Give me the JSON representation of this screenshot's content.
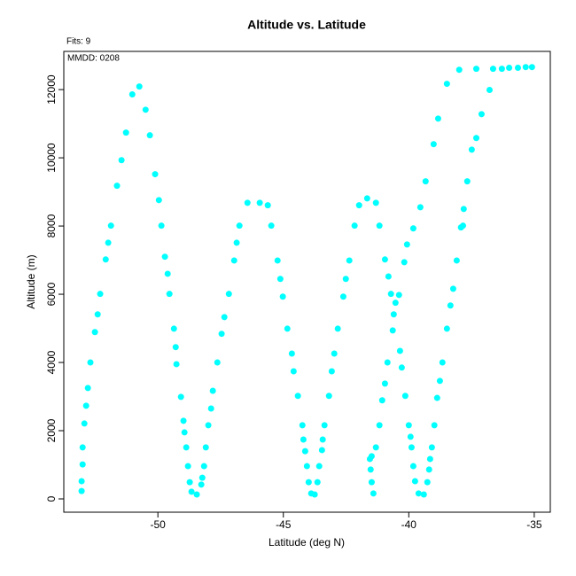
{
  "chart_data": {
    "type": "scatter",
    "title": "Altitude vs. Latitude",
    "subtitle": "Fits: 9",
    "annotation": "MMDD: 0208",
    "xlabel": "Latitude (deg N)",
    "ylabel": "Altitude (m)",
    "color": "#00ffff",
    "xlim": [
      -53.75,
      -34.36
    ],
    "ylim": [
      -390,
      13120
    ],
    "xticks": [
      -50,
      -45,
      -40,
      -35
    ],
    "yticks": [
      0,
      2000,
      4000,
      6000,
      8000,
      10000,
      12000
    ],
    "x": [
      -53.04,
      -53.04,
      -53.0,
      -53.0,
      -52.93,
      -52.86,
      -52.79,
      -52.69,
      -52.51,
      -52.4,
      -52.3,
      -52.08,
      -51.98,
      -51.87,
      -51.63,
      -51.45,
      -51.27,
      -51.02,
      -50.74,
      -50.49,
      -50.32,
      -50.11,
      -49.96,
      -49.86,
      -49.72,
      -49.61,
      -49.54,
      -49.36,
      -49.29,
      -49.26,
      -49.08,
      -48.98,
      -48.94,
      -48.87,
      -48.8,
      -48.73,
      -48.66,
      -48.45,
      -48.27,
      -48.23,
      -48.16,
      -48.09,
      -47.99,
      -47.88,
      -47.81,
      -47.63,
      -47.46,
      -47.35,
      -47.17,
      -46.96,
      -46.86,
      -46.75,
      -46.43,
      -45.94,
      -45.62,
      -45.48,
      -45.23,
      -45.12,
      -45.02,
      -44.84,
      -44.66,
      -44.59,
      -44.42,
      -44.24,
      -44.2,
      -44.13,
      -44.06,
      -43.99,
      -43.89,
      -43.75,
      -43.64,
      -43.57,
      -43.46,
      -43.43,
      -43.36,
      -43.18,
      -43.07,
      -42.97,
      -42.83,
      -42.61,
      -42.51,
      -42.37,
      -42.16,
      -41.98,
      -41.66,
      -41.31,
      -41.17,
      -41.41,
      -41.48,
      -41.52,
      -41.55,
      -41.48,
      -41.31,
      -41.17,
      -41.06,
      -40.95,
      -40.85,
      -40.95,
      -40.81,
      -40.71,
      -40.6,
      -40.53,
      -40.64,
      -40.39,
      -40.35,
      -40.28,
      -40.14,
      -40.0,
      -39.93,
      -39.89,
      -39.82,
      -39.75,
      -39.61,
      -39.4,
      -39.26,
      -39.19,
      -39.15,
      -39.08,
      -38.98,
      -38.87,
      -38.76,
      -38.66,
      -38.48,
      -38.34,
      -38.23,
      -38.09,
      -37.92,
      -37.81,
      -37.67,
      -37.49,
      -37.1,
      -36.78,
      -36.64,
      -36.29,
      -36.0,
      -35.65,
      -35.34,
      -35.09,
      -40.18,
      -40.07,
      -39.82,
      -39.54,
      -39.33,
      -39.01,
      -38.83,
      -38.48,
      -37.99,
      -37.31,
      -37.31,
      -37.84
    ],
    "values": [
      230,
      520,
      1010,
      1510,
      2210,
      2730,
      3250,
      4000,
      4890,
      5410,
      6010,
      7020,
      7510,
      8010,
      9180,
      9930,
      10740,
      11860,
      12090,
      11410,
      10660,
      9520,
      8760,
      8010,
      7100,
      6600,
      6010,
      4990,
      4450,
      3950,
      2990,
      2290,
      1950,
      1510,
      960,
      490,
      210,
      130,
      420,
      620,
      960,
      1510,
      2160,
      2650,
      3170,
      4000,
      4840,
      5330,
      6010,
      6990,
      7510,
      8010,
      8680,
      8680,
      8610,
      8010,
      6990,
      6450,
      5930,
      4990,
      4260,
      3740,
      3020,
      2160,
      1740,
      1400,
      960,
      490,
      160,
      130,
      490,
      960,
      1430,
      1740,
      2160,
      3020,
      3740,
      4260,
      4990,
      5930,
      6450,
      6990,
      8010,
      8610,
      8810,
      8680,
      8010,
      160,
      490,
      860,
      1170,
      1250,
      1510,
      2160,
      2890,
      3380,
      4000,
      7020,
      6520,
      6010,
      5410,
      5750,
      4940,
      5980,
      4340,
      3850,
      3020,
      2160,
      1820,
      1510,
      960,
      520,
      160,
      130,
      490,
      860,
      1170,
      1510,
      2160,
      2960,
      3460,
      4000,
      4990,
      5670,
      6160,
      6990,
      7960,
      8500,
      9310,
      10240,
      11280,
      11990,
      12610,
      12610,
      12640,
      12640,
      12660,
      12660,
      6940,
      7460,
      7930,
      8550,
      9310,
      10400,
      11150,
      12170,
      12580,
      12610,
      10580,
      8010
    ]
  }
}
